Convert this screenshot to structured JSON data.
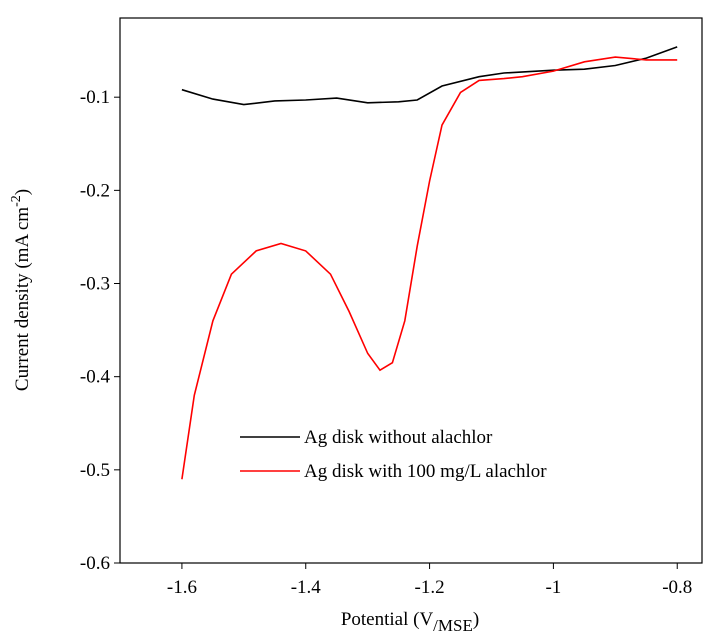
{
  "chart_data": {
    "type": "line",
    "x_label": [
      "Potential (V",
      "/MSE",
      ")"
    ],
    "y_label": [
      "Current density (mA cm",
      "-2",
      ")"
    ],
    "xlim": [
      -1.7,
      -0.76
    ],
    "ylim": [
      -0.6,
      -0.015
    ],
    "xticks": [
      -1.6,
      -1.4,
      -1.2,
      -1.0,
      -0.8
    ],
    "yticks": [
      -0.1,
      -0.2,
      -0.3,
      -0.4,
      -0.5,
      -0.6
    ],
    "legend": "lower right",
    "series": [
      {
        "name": "Ag disk without alachlor",
        "color": "#000000",
        "x": [
          -1.6,
          -1.55,
          -1.5,
          -1.45,
          -1.4,
          -1.35,
          -1.3,
          -1.25,
          -1.22,
          -1.18,
          -1.12,
          -1.08,
          -1.0,
          -0.95,
          -0.9,
          -0.85,
          -0.8
        ],
        "values": [
          -0.092,
          -0.102,
          -0.108,
          -0.104,
          -0.103,
          -0.101,
          -0.106,
          -0.105,
          -0.103,
          -0.088,
          -0.078,
          -0.074,
          -0.071,
          -0.07,
          -0.066,
          -0.058,
          -0.046
        ]
      },
      {
        "name": "Ag disk with 100 mg/L alachlor",
        "color": "#ff0000",
        "x": [
          -1.6,
          -1.58,
          -1.55,
          -1.52,
          -1.48,
          -1.44,
          -1.4,
          -1.36,
          -1.33,
          -1.3,
          -1.28,
          -1.26,
          -1.24,
          -1.22,
          -1.2,
          -1.18,
          -1.15,
          -1.12,
          -1.08,
          -1.05,
          -1.0,
          -0.95,
          -0.9,
          -0.85,
          -0.8
        ],
        "values": [
          -0.51,
          -0.42,
          -0.34,
          -0.29,
          -0.265,
          -0.257,
          -0.265,
          -0.29,
          -0.33,
          -0.375,
          -0.393,
          -0.385,
          -0.34,
          -0.26,
          -0.19,
          -0.13,
          -0.095,
          -0.082,
          -0.08,
          -0.078,
          -0.072,
          -0.062,
          -0.057,
          -0.06,
          -0.06
        ]
      }
    ]
  }
}
